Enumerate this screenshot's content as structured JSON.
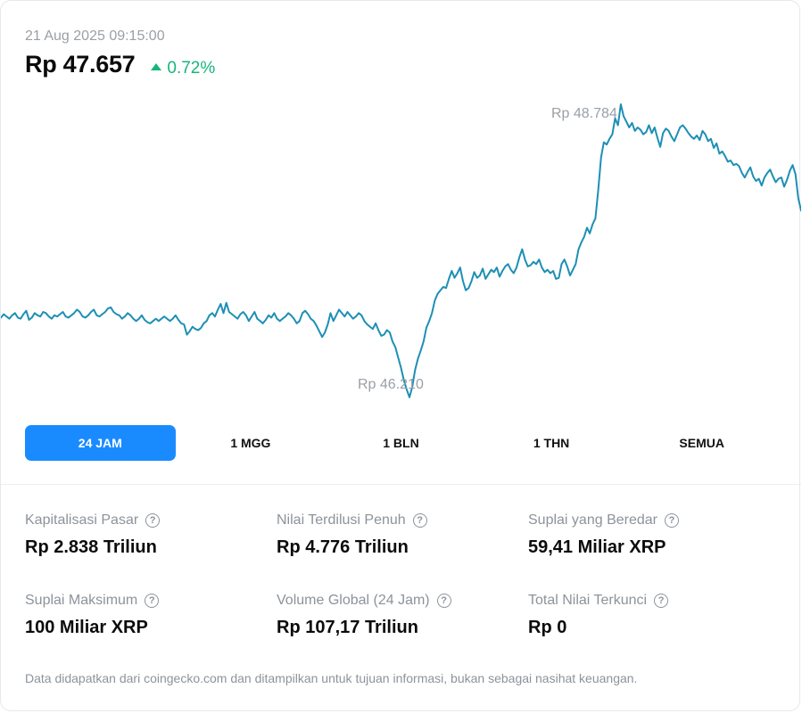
{
  "header": {
    "timestamp": "21 Aug 2025 09:15:00",
    "price": "Rp 47.657",
    "change": "0.72%",
    "change_direction_icon": "triangle-up-icon"
  },
  "chart_labels": {
    "high": "Rp 48.784",
    "low": "Rp 46.210"
  },
  "chart_data": {
    "type": "line",
    "title": "",
    "xlabel": "",
    "ylabel": "",
    "currency": "Rp",
    "period": "24 JAM",
    "ylim": [
      46130,
      48870
    ],
    "color": "#1d8fb5",
    "y": [
      46910,
      46940,
      46920,
      46900,
      46930,
      46950,
      46910,
      46900,
      46940,
      46970,
      46890,
      46910,
      46950,
      46930,
      46920,
      46960,
      46950,
      46920,
      46900,
      46930,
      46920,
      46940,
      46960,
      46920,
      46910,
      46930,
      46950,
      46980,
      46960,
      46920,
      46910,
      46930,
      46960,
      46980,
      46930,
      46920,
      46940,
      46960,
      46990,
      47000,
      46960,
      46940,
      46930,
      46900,
      46920,
      46950,
      46930,
      46900,
      46880,
      46900,
      46930,
      46890,
      46870,
      46860,
      46880,
      46900,
      46880,
      46900,
      46920,
      46900,
      46880,
      46900,
      46930,
      46890,
      46860,
      46850,
      46760,
      46790,
      46830,
      46810,
      46800,
      46820,
      46860,
      46880,
      46930,
      46950,
      46920,
      46980,
      47030,
      46950,
      47040,
      46960,
      46940,
      46920,
      46900,
      46940,
      46960,
      46930,
      46880,
      46920,
      46960,
      46900,
      46880,
      46860,
      46890,
      46930,
      46910,
      46950,
      46900,
      46880,
      46900,
      46920,
      46950,
      46930,
      46900,
      46860,
      46880,
      46950,
      46970,
      46940,
      46900,
      46880,
      46840,
      46790,
      46740,
      46780,
      46850,
      46950,
      46880,
      46930,
      46980,
      46950,
      46920,
      46960,
      46930,
      46900,
      46920,
      46950,
      46930,
      46880,
      46850,
      46830,
      46810,
      46860,
      46800,
      46750,
      46760,
      46800,
      46780,
      46700,
      46650,
      46560,
      46470,
      46360,
      46280,
      46210,
      46300,
      46450,
      46550,
      46620,
      46700,
      46820,
      46880,
      46950,
      47060,
      47120,
      47150,
      47180,
      47170,
      47250,
      47320,
      47260,
      47300,
      47350,
      47230,
      47150,
      47170,
      47230,
      47310,
      47260,
      47280,
      47340,
      47250,
      47290,
      47330,
      47310,
      47350,
      47270,
      47320,
      47360,
      47380,
      47330,
      47300,
      47350,
      47440,
      47510,
      47420,
      47360,
      47370,
      47400,
      47380,
      47420,
      47350,
      47310,
      47330,
      47300,
      47320,
      47250,
      47260,
      47380,
      47420,
      47360,
      47280,
      47330,
      47380,
      47510,
      47570,
      47620,
      47700,
      47650,
      47730,
      47780,
      48030,
      48320,
      48450,
      48430,
      48480,
      48520,
      48660,
      48600,
      48784,
      48680,
      48630,
      48580,
      48620,
      48550,
      48580,
      48560,
      48520,
      48540,
      48600,
      48530,
      48580,
      48490,
      48410,
      48530,
      48570,
      48550,
      48500,
      48460,
      48520,
      48580,
      48600,
      48570,
      48530,
      48500,
      48480,
      48510,
      48470,
      48550,
      48520,
      48460,
      48480,
      48400,
      48440,
      48350,
      48370,
      48330,
      48280,
      48290,
      48250,
      48260,
      48240,
      48180,
      48140,
      48190,
      48230,
      48150,
      48110,
      48130,
      48070,
      48140,
      48180,
      48210,
      48150,
      48100,
      48130,
      48140,
      48060,
      48120,
      48200,
      48250,
      48170,
      47960,
      47850
    ]
  },
  "tabs": [
    {
      "label": "24 JAM",
      "active": true
    },
    {
      "label": "1 MGG",
      "active": false
    },
    {
      "label": "1 BLN",
      "active": false
    },
    {
      "label": "1 THN",
      "active": false
    },
    {
      "label": "SEMUA",
      "active": false
    }
  ],
  "stats": [
    {
      "label": "Kapitalisasi Pasar",
      "value": "Rp 2.838 Triliun",
      "icon": "question-icon"
    },
    {
      "label": "Nilai Terdilusi Penuh",
      "value": "Rp 4.776 Triliun",
      "icon": "question-icon"
    },
    {
      "label": "Suplai yang Beredar",
      "value": "59,41 Miliar XRP",
      "icon": "question-icon"
    },
    {
      "label": "Suplai Maksimum",
      "value": "100 Miliar XRP",
      "icon": "question-icon"
    },
    {
      "label": "Volume Global (24 Jam)",
      "value": "Rp 107,17 Triliun",
      "icon": "question-icon"
    },
    {
      "label": "Total Nilai Terkunci",
      "value": "Rp 0",
      "icon": "question-icon"
    }
  ],
  "help_icon_glyph": "?",
  "footer": "Data didapatkan dari coingecko.com dan ditampilkan untuk tujuan informasi, bukan sebagai nasihat keuangan."
}
